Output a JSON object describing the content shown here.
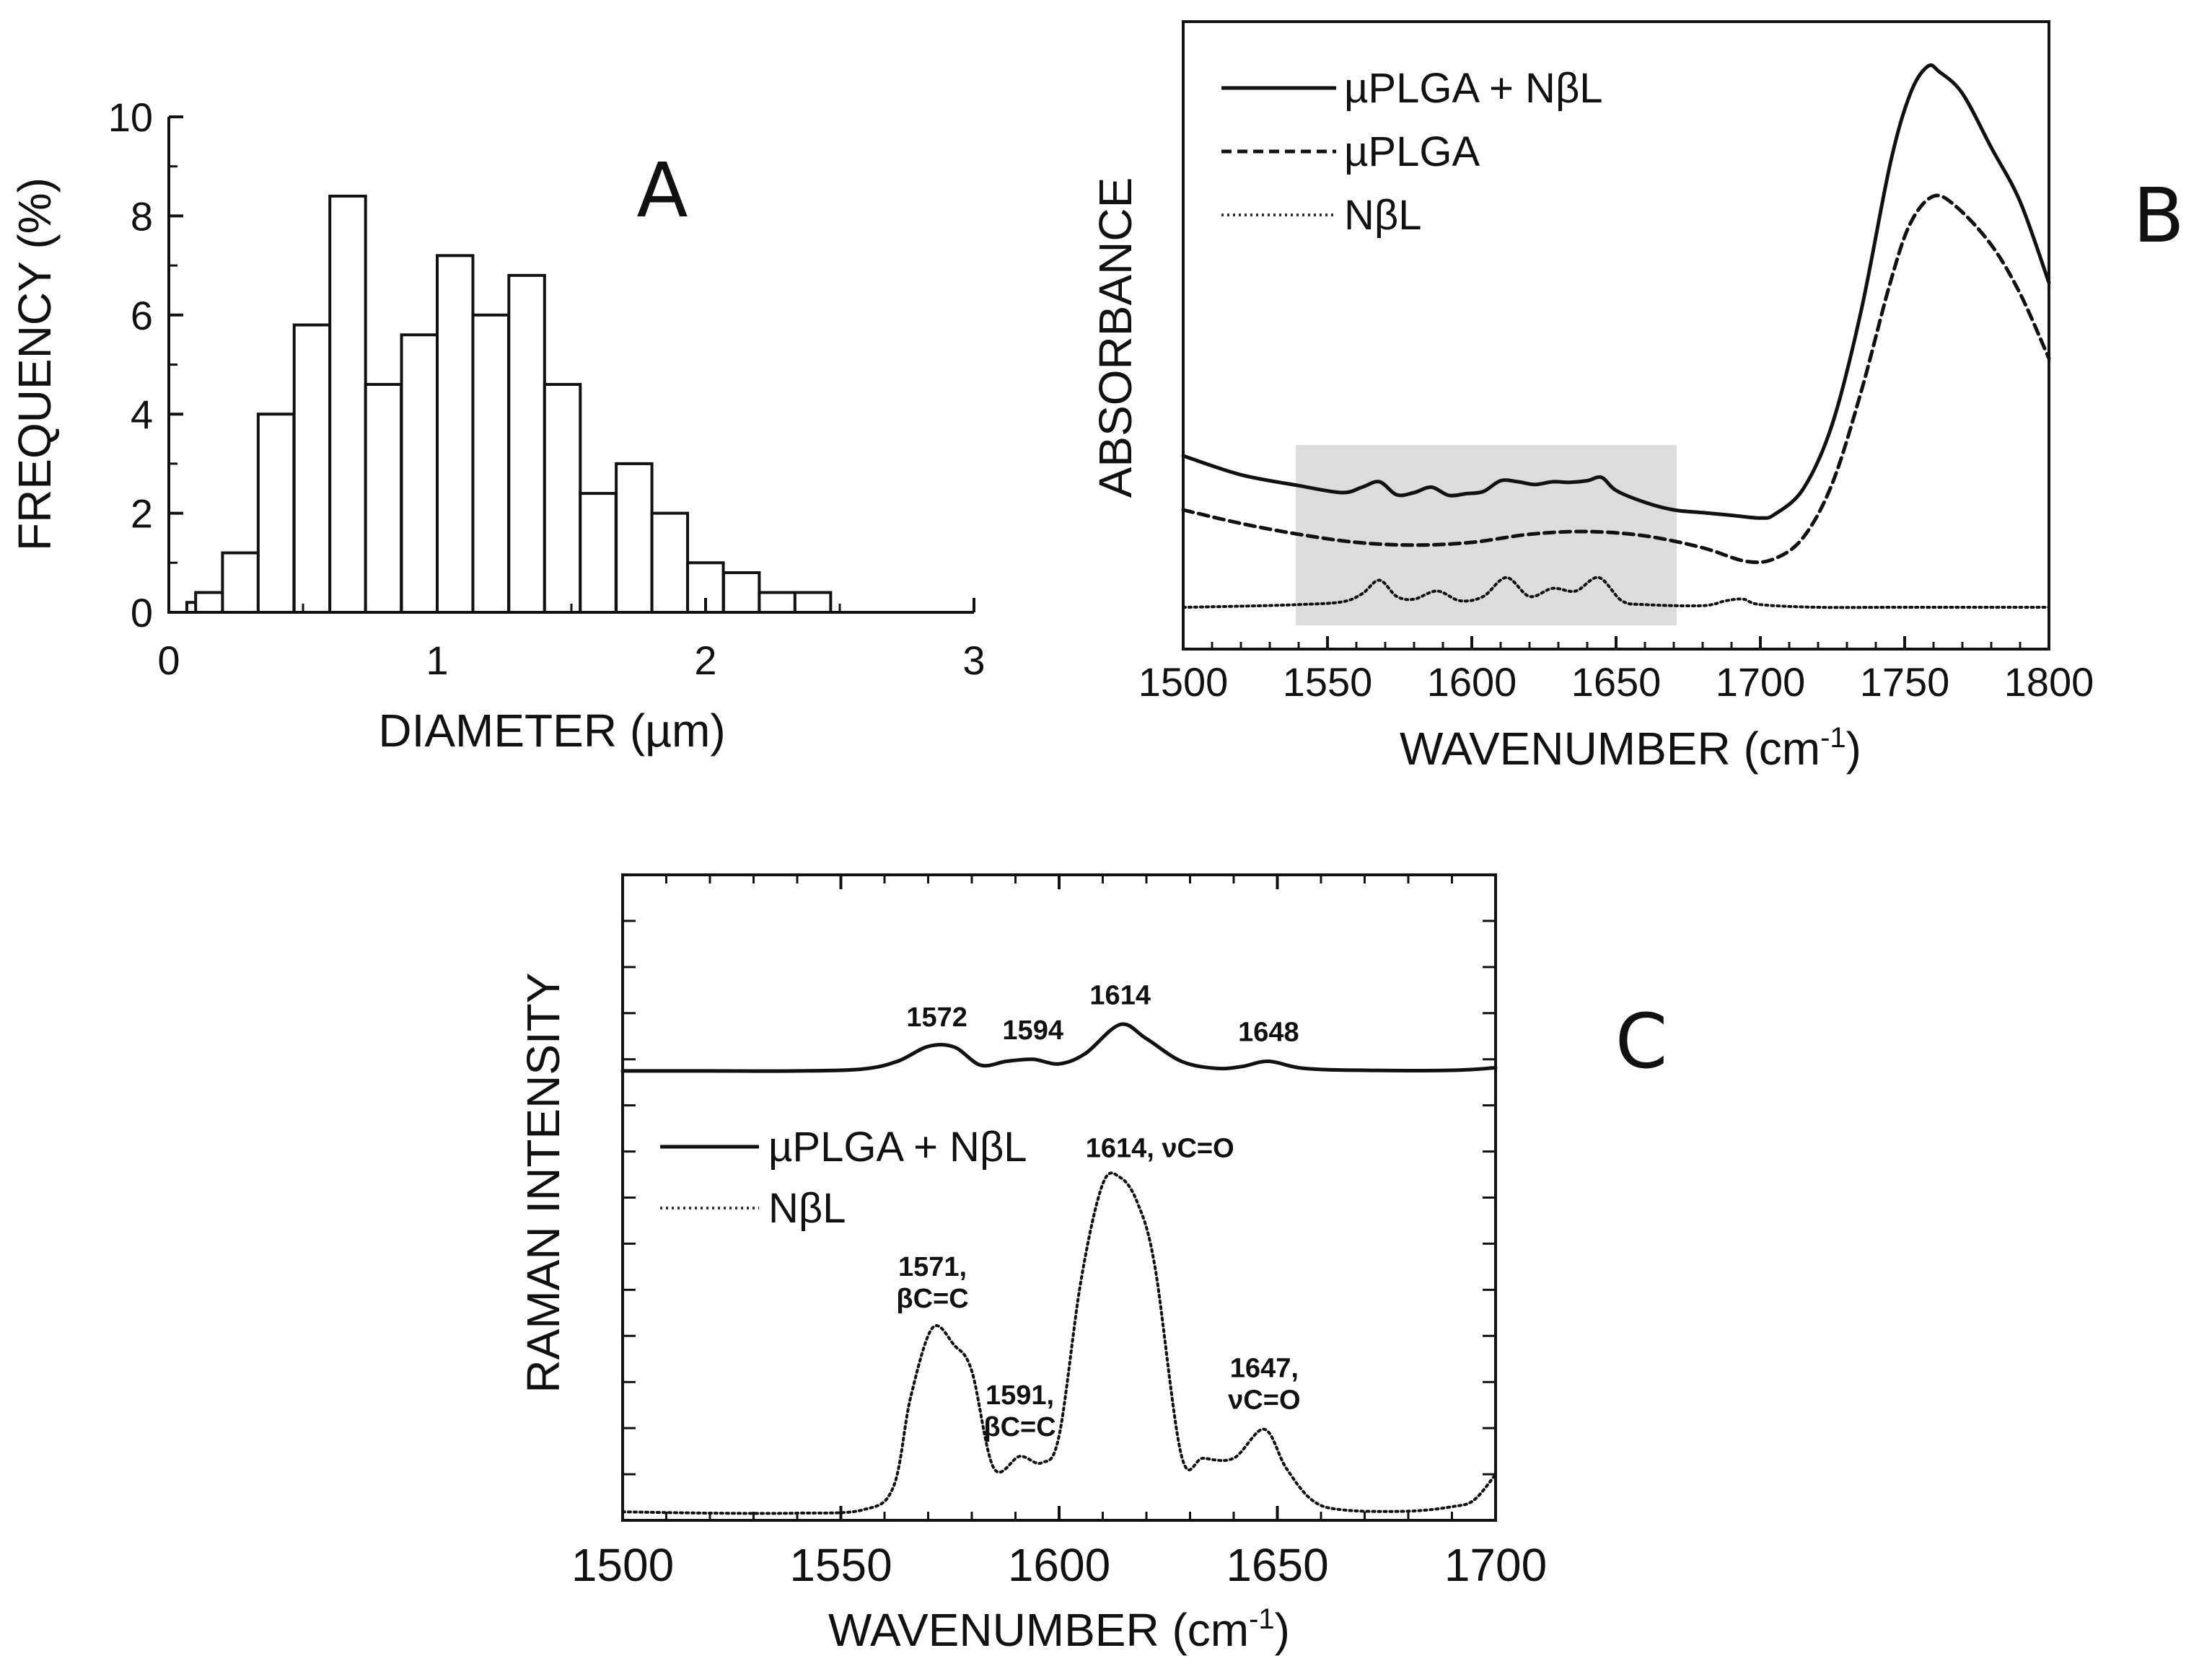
{
  "chart_data": [
    {
      "panel": "A",
      "type": "bar",
      "panel_label": "A",
      "xlabel": "DIAMETER (µm)",
      "ylabel": "FREQUENCY (%)",
      "xlim": [
        0,
        3
      ],
      "ylim": [
        0,
        10
      ],
      "xticks": [
        "0",
        "1",
        "2",
        "3"
      ],
      "yticks": [
        "0",
        "2",
        "4",
        "6",
        "8",
        "10"
      ],
      "bin_width": 0.133,
      "bin_starts": [
        0.067,
        0.1,
        0.2,
        0.333,
        0.467,
        0.6,
        0.733,
        0.867,
        1.0,
        1.133,
        1.267,
        1.4,
        1.533,
        1.667,
        1.8,
        1.933,
        2.067,
        2.2,
        2.333
      ],
      "values": [
        0.2,
        0.4,
        1.2,
        4.0,
        5.8,
        8.4,
        4.6,
        5.6,
        7.2,
        6.0,
        6.8,
        4.6,
        2.4,
        3.0,
        2.0,
        1.0,
        0.8,
        0.4,
        0.4
      ]
    },
    {
      "panel": "B",
      "type": "line",
      "panel_label": "B",
      "xlabel": "WAVENUMBER (cm",
      "xlabel_sup": "-1",
      "xlabel_end": ")",
      "ylabel": "ABSORBANCE",
      "xlim": [
        1500,
        1800
      ],
      "ylim": [
        0,
        1
      ],
      "xticks": [
        "1500",
        "1550",
        "1600",
        "1650",
        "1700",
        "1750",
        "1800"
      ],
      "highlight_region": [
        1539,
        1671
      ],
      "legend": [
        "µPLGA + NβL",
        "µPLGA",
        "NβL"
      ],
      "series": [
        {
          "name": "µPLGA + NβL",
          "style": "solid",
          "x": [
            1500,
            1520,
            1540,
            1555,
            1562,
            1568,
            1574,
            1580,
            1586,
            1592,
            1598,
            1604,
            1610,
            1616,
            1622,
            1628,
            1634,
            1640,
            1645,
            1650,
            1660,
            1670,
            1680,
            1690,
            1700,
            1705,
            1715,
            1725,
            1735,
            1745,
            1752,
            1758,
            1762,
            1770,
            1780,
            1790,
            1800
          ],
          "y": [
            0.28,
            0.245,
            0.225,
            0.212,
            0.222,
            0.232,
            0.208,
            0.212,
            0.222,
            0.207,
            0.21,
            0.214,
            0.234,
            0.232,
            0.227,
            0.232,
            0.231,
            0.234,
            0.24,
            0.216,
            0.194,
            0.18,
            0.175,
            0.17,
            0.165,
            0.172,
            0.22,
            0.34,
            0.55,
            0.82,
            0.95,
            1.0,
            0.99,
            0.95,
            0.85,
            0.75,
            0.6
          ]
        },
        {
          "name": "µPLGA",
          "style": "dashed",
          "x": [
            1500,
            1520,
            1540,
            1560,
            1580,
            1600,
            1620,
            1640,
            1660,
            1680,
            1695,
            1705,
            1715,
            1725,
            1735,
            1745,
            1752,
            1760,
            1768,
            1780,
            1790,
            1800
          ],
          "y": [
            0.18,
            0.155,
            0.135,
            0.12,
            0.115,
            0.12,
            0.135,
            0.14,
            0.132,
            0.11,
            0.085,
            0.09,
            0.13,
            0.23,
            0.4,
            0.6,
            0.71,
            0.76,
            0.74,
            0.67,
            0.58,
            0.46
          ]
        },
        {
          "name": "NβL",
          "style": "dotted",
          "x": [
            1500,
            1520,
            1540,
            1555,
            1562,
            1568,
            1574,
            1580,
            1588,
            1596,
            1604,
            1612,
            1620,
            1628,
            1636,
            1644,
            1652,
            1660,
            1680,
            1688,
            1694,
            1700,
            1720,
            1750,
            1800
          ],
          "y": [
            0.0,
            0.002,
            0.005,
            0.01,
            0.025,
            0.05,
            0.02,
            0.015,
            0.03,
            0.012,
            0.02,
            0.055,
            0.02,
            0.035,
            0.03,
            0.055,
            0.012,
            0.005,
            0.003,
            0.012,
            0.015,
            0.005,
            0.0,
            0.0,
            0.0
          ]
        }
      ]
    },
    {
      "panel": "C",
      "type": "line",
      "panel_label": "C",
      "xlabel": "WAVENUMBER (cm",
      "xlabel_sup": "-1",
      "xlabel_end": ")",
      "ylabel": "RAMAN INTENSITY",
      "xlim": [
        1500,
        1700
      ],
      "ylim": [
        0,
        1
      ],
      "xticks": [
        "1500",
        "1550",
        "1600",
        "1650",
        "1700"
      ],
      "legend": [
        "µPLGA + NβL",
        "NβL"
      ],
      "series": [
        {
          "name": "µPLGA + NβL",
          "style": "solid",
          "x": [
            1500,
            1520,
            1540,
            1555,
            1563,
            1570,
            1576,
            1582,
            1588,
            1594,
            1600,
            1606,
            1614,
            1620,
            1628,
            1636,
            1642,
            1648,
            1656,
            1670,
            1690,
            1700
          ],
          "y": [
            0.685,
            0.685,
            0.685,
            0.688,
            0.7,
            0.723,
            0.722,
            0.694,
            0.7,
            0.703,
            0.696,
            0.712,
            0.757,
            0.735,
            0.7,
            0.689,
            0.692,
            0.7,
            0.689,
            0.686,
            0.686,
            0.69
          ]
        },
        {
          "name": "NβL",
          "style": "dotted",
          "x": [
            1500,
            1520,
            1540,
            1555,
            1562,
            1566,
            1571,
            1576,
            1580,
            1585,
            1591,
            1596,
            1600,
            1605,
            1610,
            1614,
            1618,
            1622,
            1628,
            1633,
            1640,
            1647,
            1652,
            1658,
            1665,
            1680,
            1690,
            1695,
            1700
          ],
          "y": [
            0.002,
            0.0,
            0.0,
            0.005,
            0.04,
            0.18,
            0.287,
            0.26,
            0.22,
            0.07,
            0.088,
            0.078,
            0.12,
            0.36,
            0.51,
            0.52,
            0.48,
            0.38,
            0.09,
            0.085,
            0.085,
            0.13,
            0.07,
            0.02,
            0.005,
            0.003,
            0.01,
            0.02,
            0.06
          ]
        }
      ],
      "annotations": [
        {
          "series": "µPLGA + NβL",
          "x": 1572,
          "lines": [
            "1572"
          ]
        },
        {
          "series": "µPLGA + NβL",
          "x": 1594,
          "lines": [
            "1594"
          ]
        },
        {
          "series": "µPLGA + NβL",
          "x": 1614,
          "lines": [
            "1614"
          ]
        },
        {
          "series": "µPLGA + NβL",
          "x": 1648,
          "lines": [
            "1648"
          ]
        },
        {
          "series": "NβL",
          "x": 1571,
          "lines": [
            "1571,",
            "βC=C"
          ]
        },
        {
          "series": "NβL",
          "x": 1591,
          "lines": [
            "1591,",
            "βC=C"
          ]
        },
        {
          "series": "NβL",
          "x": 1614,
          "lines": [
            "1614, νC=O"
          ]
        },
        {
          "series": "NβL",
          "x": 1647,
          "lines": [
            "1647,",
            "νC=O"
          ]
        }
      ]
    }
  ]
}
